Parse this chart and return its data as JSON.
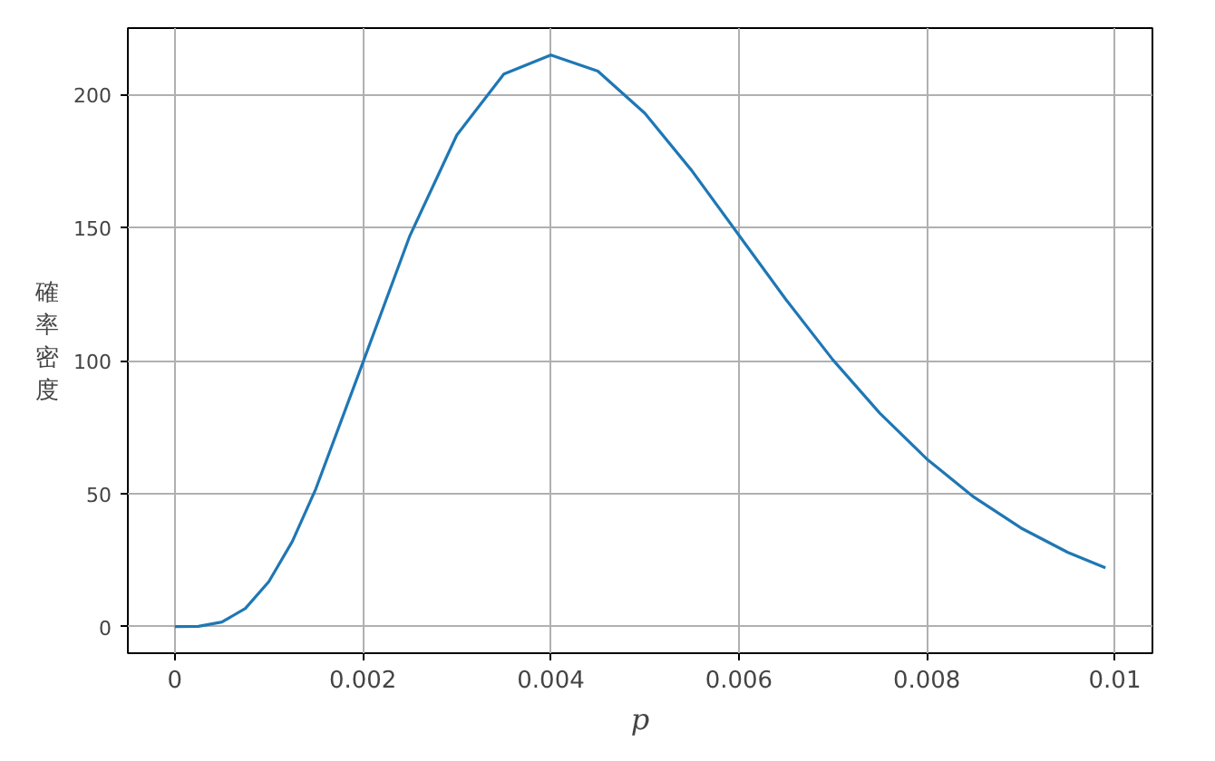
{
  "chart_data": {
    "type": "line",
    "xlabel": "p",
    "ylabel": "確率密度",
    "x": [
      0,
      0.00025,
      0.0005,
      0.00075,
      0.001,
      0.00125,
      0.0015,
      0.002,
      0.0025,
      0.003,
      0.0035,
      0.004,
      0.0045,
      0.005,
      0.0055,
      0.006,
      0.0065,
      0.007,
      0.0075,
      0.008,
      0.0085,
      0.009,
      0.0095,
      0.0099
    ],
    "series": [
      {
        "color": "#1f77b4",
        "values": [
          0,
          0.1,
          1.7,
          6.8,
          16.9,
          32.0,
          51.8,
          99.2,
          146.9,
          184.8,
          207.7,
          214.9,
          208.8,
          193.0,
          171.4,
          147.2,
          123.0,
          100.3,
          80.2,
          63.0,
          48.7,
          37.1,
          27.9,
          22.1
        ]
      }
    ],
    "xlim": [
      -0.0005,
      0.0104
    ],
    "ylim": [
      -10,
      225
    ],
    "xticks": [
      0,
      0.002,
      0.004,
      0.006,
      0.008,
      0.01
    ],
    "yticks": [
      0,
      50,
      100,
      150,
      200
    ],
    "grid": true,
    "marker": "none",
    "line_style": "solid"
  }
}
